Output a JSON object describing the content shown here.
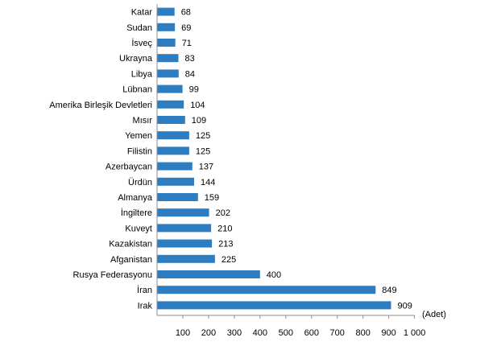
{
  "chart_data": {
    "type": "bar",
    "orientation": "horizontal",
    "categories": [
      "Katar",
      "Sudan",
      "İsveç",
      "Ukrayna",
      "Libya",
      "Lübnan",
      "Amerika Birleşik Devletleri",
      "Mısır",
      "Yemen",
      "Filistin",
      "Azerbaycan",
      "Ürdün",
      "Almanya",
      "İngiltere",
      "Kuveyt",
      "Kazakistan",
      "Afganistan",
      "Rusya Federasyonu",
      "İran",
      "Irak"
    ],
    "values": [
      68,
      69,
      71,
      83,
      84,
      99,
      104,
      109,
      125,
      125,
      137,
      144,
      159,
      202,
      210,
      213,
      225,
      400,
      849,
      909
    ],
    "value_labels": [
      "68",
      "69",
      "71",
      "83",
      "84",
      "99",
      "104",
      "109",
      "125",
      "125",
      "137",
      "144",
      "159",
      "202",
      "210",
      "213",
      "225",
      "400",
      "849",
      "909"
    ],
    "x_ticks": [
      100,
      200,
      300,
      400,
      500,
      600,
      700,
      800,
      900,
      1000
    ],
    "x_tick_labels": [
      "100",
      "200",
      "300",
      "400",
      "500",
      "600",
      "700",
      "800",
      "900",
      "1 000"
    ],
    "xlim": [
      0,
      1000
    ],
    "unit_label": "(Adet)",
    "title": "",
    "xlabel": "",
    "ylabel": "",
    "grid": false,
    "legend": "none",
    "bar_color": "#2e7dc0"
  }
}
